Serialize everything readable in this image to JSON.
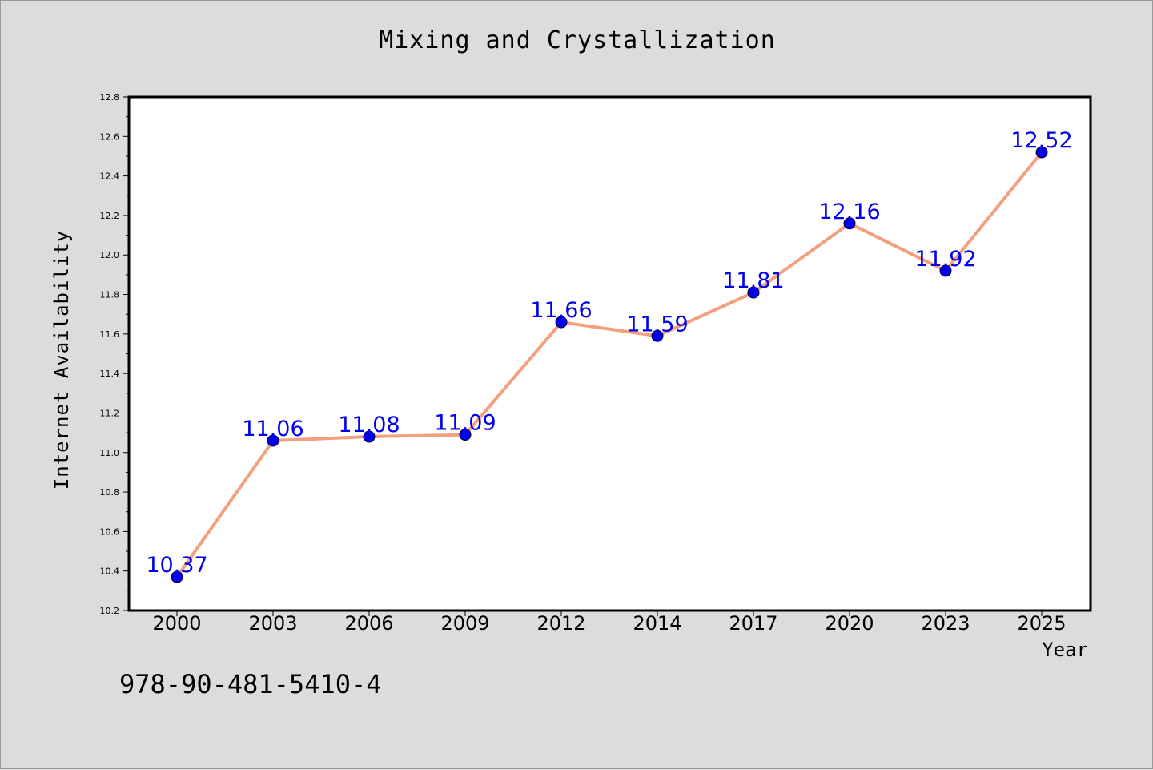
{
  "chart_data": {
    "type": "line",
    "title": "Mixing and Crystallization",
    "xlabel": "Year",
    "ylabel": "Internet Availability",
    "categories": [
      "2000",
      "2003",
      "2006",
      "2009",
      "2012",
      "2014",
      "2017",
      "2020",
      "2023",
      "2025"
    ],
    "series": [
      {
        "values": [
          10.37,
          11.06,
          11.08,
          11.09,
          11.66,
          11.59,
          11.81,
          12.16,
          11.92,
          12.52
        ],
        "line_color": "#f4a07e",
        "marker_color": "#0000ee",
        "label_color": "#0000ee"
      }
    ],
    "data_labels": [
      "10.37",
      "11.06",
      "11.08",
      "11.09",
      "11.66",
      "11.59",
      "11.81",
      "12.16",
      "11.92",
      "12.52"
    ],
    "ylim": [
      10.2,
      12.8
    ],
    "y_ticks": [
      "10.2",
      "10.4",
      "10.6",
      "10.8",
      "11.0",
      "11.2",
      "11.4",
      "11.6",
      "11.8",
      "12.0",
      "12.2",
      "12.4",
      "12.6",
      "12.8"
    ],
    "grid": false,
    "legend": "none"
  },
  "footer": {
    "isbn": "978-90-481-5410-4"
  }
}
